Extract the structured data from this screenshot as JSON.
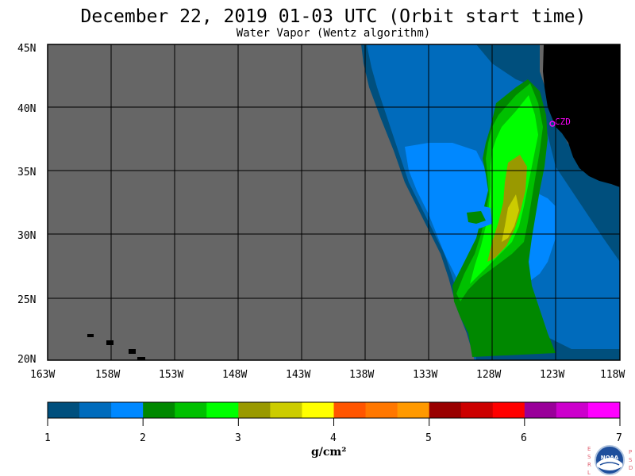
{
  "header": {
    "title": "December 22, 2019  01-03 UTC  (Orbit start time)",
    "subtitle": "Water Vapor (Wentz algorithm)"
  },
  "map": {
    "lat_labels": [
      "45N",
      "40N",
      "35N",
      "30N",
      "25N",
      "20N"
    ],
    "lon_labels": [
      "163W",
      "158W",
      "153W",
      "148W",
      "143W",
      "138W",
      "133W",
      "128W",
      "123W",
      "118W"
    ],
    "lat_range": [
      20,
      45
    ],
    "lon_range": [
      -163,
      -118
    ],
    "station_label": "CZD",
    "colors": {
      "no_data": "#666666",
      "land": "#000000",
      "grid": "#000000",
      "station": "#ff00ff"
    }
  },
  "colorbar": {
    "ticks": [
      "1",
      "2",
      "3",
      "4",
      "5",
      "6",
      "7"
    ],
    "range": [
      1,
      7
    ],
    "units_text": "g/cm²",
    "colors": [
      "#004f7d",
      "#006bbc",
      "#0088ff",
      "#008800",
      "#00c000",
      "#00ff00",
      "#999900",
      "#cccc00",
      "#ffff00",
      "#ff5500",
      "#ff7700",
      "#ff9900",
      "#990000",
      "#cc0000",
      "#ff0000",
      "#990099",
      "#cc00cc",
      "#ff00ff"
    ]
  },
  "logo": {
    "left_letters": [
      "E",
      "S",
      "R",
      "L"
    ],
    "right_letters": [
      "P",
      "S",
      "D"
    ],
    "name": "NOAA"
  }
}
